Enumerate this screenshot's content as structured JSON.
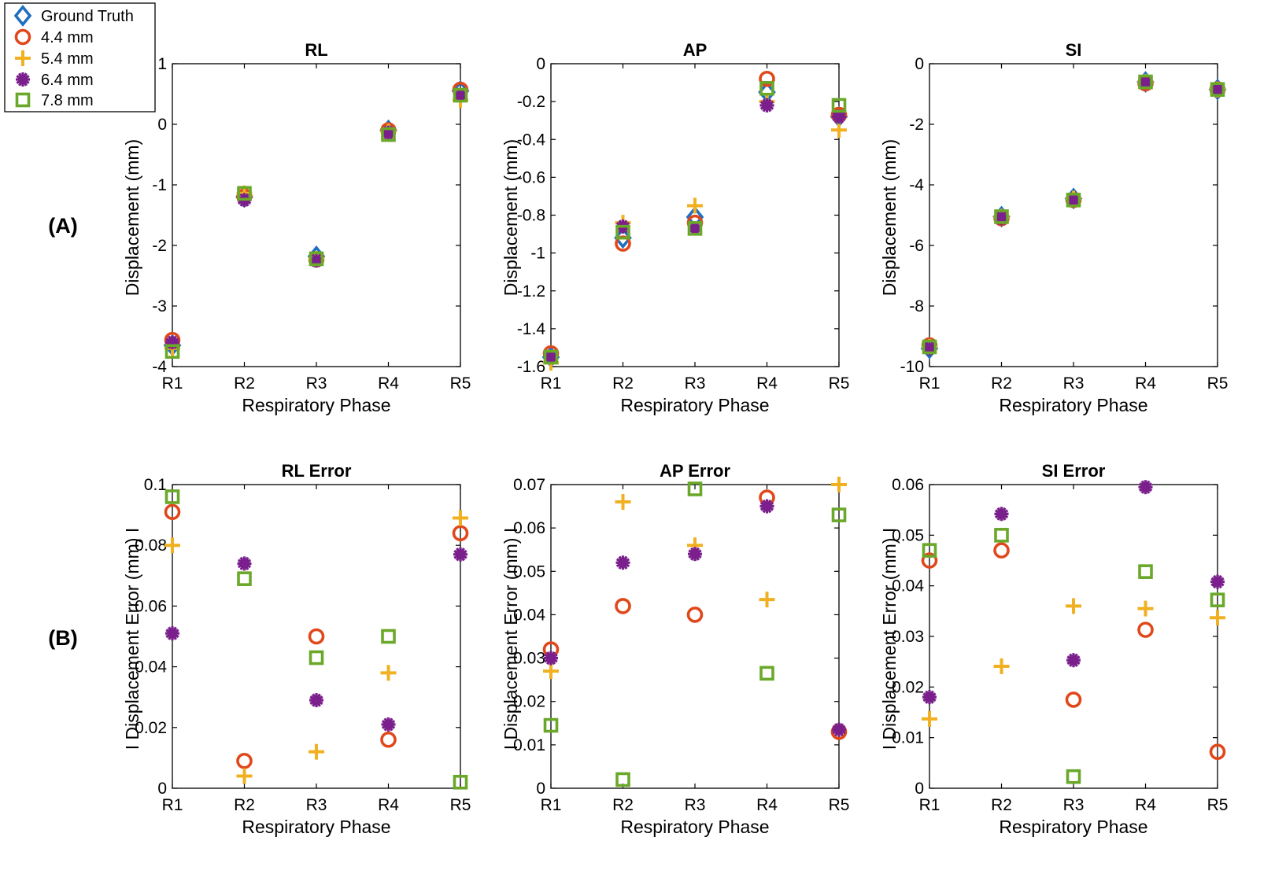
{
  "figure": {
    "row_labels": [
      "(A)",
      "(B)"
    ],
    "series_names": [
      "Ground Truth",
      "4.4 mm",
      "5.4 mm",
      "6.4 mm",
      "7.8 mm"
    ],
    "series_colors": [
      "#1f6fc0",
      "#e0481b",
      "#f0b020",
      "#7a1f8c",
      "#6aa82a"
    ],
    "series_markers": [
      "diamond",
      "circle",
      "plus",
      "asterisk",
      "square"
    ]
  },
  "legend": {
    "position": "top-left",
    "entries": [
      "Ground Truth",
      "4.4 mm",
      "5.4 mm",
      "6.4 mm",
      "7.8 mm"
    ]
  },
  "chart_data": [
    {
      "type": "scatter",
      "title": "RL",
      "xlabel": "Respiratory Phase",
      "ylabel": "Displacement (mm)",
      "categories": [
        "R1",
        "R2",
        "R3",
        "R4",
        "R5"
      ],
      "ylim": [
        -4,
        1
      ],
      "yticks": [
        1,
        0,
        -1,
        -2,
        -3,
        -4
      ],
      "ytick_labels": [
        "1",
        "0",
        "-1",
        "-2",
        "-3",
        "-4"
      ],
      "series": [
        {
          "name": "Ground Truth",
          "values": [
            -3.65,
            -1.2,
            -2.18,
            -0.1,
            0.55
          ]
        },
        {
          "name": "4.4 mm",
          "values": [
            -3.56,
            -1.19,
            -2.23,
            -0.1,
            0.57
          ]
        },
        {
          "name": "5.4 mm",
          "values": [
            -3.7,
            -1.14,
            -2.22,
            -0.12,
            0.4
          ]
        },
        {
          "name": "6.4 mm",
          "values": [
            -3.6,
            -1.25,
            -2.25,
            -0.14,
            0.48
          ]
        },
        {
          "name": "7.8 mm",
          "values": [
            -3.75,
            -1.14,
            -2.22,
            -0.17,
            0.48
          ]
        }
      ]
    },
    {
      "type": "scatter",
      "title": "AP",
      "xlabel": "Respiratory Phase",
      "ylabel": "Displacement (mm)",
      "categories": [
        "R1",
        "R2",
        "R3",
        "R4",
        "R5"
      ],
      "ylim": [
        -1.6,
        0
      ],
      "yticks": [
        0,
        -0.2,
        -0.4,
        -0.6,
        -0.8,
        -1,
        -1.2,
        -1.4,
        -1.6
      ],
      "ytick_labels": [
        "0",
        "-0.2",
        "-0.4",
        "-0.6",
        "-0.8",
        "-1",
        "-1.2",
        "-1.4",
        "-1.6"
      ],
      "series": [
        {
          "name": "Ground Truth",
          "values": [
            -1.55,
            -0.92,
            -0.81,
            -0.15,
            -0.28
          ]
        },
        {
          "name": "4.4 mm",
          "values": [
            -1.53,
            -0.95,
            -0.84,
            -0.08,
            -0.27
          ]
        },
        {
          "name": "5.4 mm",
          "values": [
            -1.58,
            -0.84,
            -0.75,
            -0.2,
            -0.35
          ]
        },
        {
          "name": "6.4 mm",
          "values": [
            -1.55,
            -0.86,
            -0.87,
            -0.22,
            -0.28
          ]
        },
        {
          "name": "7.8 mm",
          "values": [
            -1.55,
            -0.89,
            -0.87,
            -0.13,
            -0.22
          ]
        }
      ]
    },
    {
      "type": "scatter",
      "title": "SI",
      "xlabel": "Respiratory Phase",
      "ylabel": "Displacement (mm)",
      "categories": [
        "R1",
        "R2",
        "R3",
        "R4",
        "R5"
      ],
      "ylim": [
        -10,
        0
      ],
      "yticks": [
        0,
        -2,
        -4,
        -6,
        -8,
        -10
      ],
      "ytick_labels": [
        "0",
        "-2",
        "-4",
        "-6",
        "-8",
        "-10"
      ],
      "series": [
        {
          "name": "Ground Truth",
          "values": [
            -9.4,
            -5.05,
            -4.45,
            -0.6,
            -0.85
          ]
        },
        {
          "name": "4.4 mm",
          "values": [
            -9.3,
            -5.1,
            -4.5,
            -0.65,
            -0.85
          ]
        },
        {
          "name": "5.4 mm",
          "values": [
            -9.35,
            -5.05,
            -4.45,
            -0.6,
            -0.85
          ]
        },
        {
          "name": "6.4 mm",
          "values": [
            -9.4,
            -5.1,
            -4.5,
            -0.62,
            -0.85
          ]
        },
        {
          "name": "7.8 mm",
          "values": [
            -9.35,
            -5.05,
            -4.5,
            -0.6,
            -0.85
          ]
        }
      ]
    },
    {
      "type": "scatter",
      "title": "RL Error",
      "xlabel": "Respiratory Phase",
      "ylabel": "I Displacement Error (mm) I",
      "categories": [
        "R1",
        "R2",
        "R3",
        "R4",
        "R5"
      ],
      "ylim": [
        0,
        0.1
      ],
      "yticks": [
        0.1,
        0.08,
        0.06,
        0.04,
        0.02,
        0
      ],
      "ytick_labels": [
        "0.1",
        "0.08",
        "0.06",
        "0.04",
        "0.02",
        "0"
      ],
      "series": [
        {
          "name": "4.4 mm",
          "values": [
            0.091,
            0.009,
            0.05,
            0.016,
            0.084
          ]
        },
        {
          "name": "5.4 mm",
          "values": [
            0.08,
            0.004,
            0.012,
            0.038,
            0.089
          ]
        },
        {
          "name": "6.4 mm",
          "values": [
            0.051,
            0.074,
            0.029,
            0.021,
            0.077
          ]
        },
        {
          "name": "7.8 mm",
          "values": [
            0.096,
            0.069,
            0.043,
            0.05,
            0.002
          ]
        }
      ]
    },
    {
      "type": "scatter",
      "title": "AP Error",
      "xlabel": "Respiratory Phase",
      "ylabel": "I Displacement Error (mm) I",
      "categories": [
        "R1",
        "R2",
        "R3",
        "R4",
        "R5"
      ],
      "ylim": [
        0,
        0.07
      ],
      "yticks": [
        0.07,
        0.06,
        0.05,
        0.04,
        0.03,
        0.02,
        0.01,
        0
      ],
      "ytick_labels": [
        "0.07",
        "0.06",
        "0.05",
        "0.04",
        "0.03",
        "0.02",
        "0.01",
        "0"
      ],
      "series": [
        {
          "name": "4.4 mm",
          "values": [
            0.032,
            0.042,
            0.04,
            0.067,
            0.013
          ]
        },
        {
          "name": "5.4 mm",
          "values": [
            0.027,
            0.066,
            0.056,
            0.0435,
            0.07
          ]
        },
        {
          "name": "6.4 mm",
          "values": [
            0.03,
            0.052,
            0.054,
            0.065,
            0.0135
          ]
        },
        {
          "name": "7.8 mm",
          "values": [
            0.0145,
            0.002,
            0.069,
            0.0265,
            0.063
          ]
        }
      ]
    },
    {
      "type": "scatter",
      "title": "SI Error",
      "xlabel": "Respiratory Phase",
      "ylabel": "I Displacement Error (mm) I",
      "categories": [
        "R1",
        "R2",
        "R3",
        "R4",
        "R5"
      ],
      "ylim": [
        0,
        0.06
      ],
      "yticks": [
        0.06,
        0.05,
        0.04,
        0.03,
        0.02,
        0.01,
        0
      ],
      "ytick_labels": [
        "0.06",
        "0.05",
        "0.04",
        "0.03",
        "0.02",
        "0.01",
        "0"
      ],
      "series": [
        {
          "name": "4.4 mm",
          "values": [
            0.045,
            0.047,
            0.0175,
            0.0313,
            0.0072
          ]
        },
        {
          "name": "5.4 mm",
          "values": [
            0.0137,
            0.0241,
            0.036,
            0.0355,
            0.0337
          ]
        },
        {
          "name": "6.4 mm",
          "values": [
            0.018,
            0.0542,
            0.0253,
            0.0595,
            0.0408
          ]
        },
        {
          "name": "7.8 mm",
          "values": [
            0.047,
            0.05,
            0.0023,
            0.0428,
            0.0372
          ]
        }
      ]
    }
  ]
}
